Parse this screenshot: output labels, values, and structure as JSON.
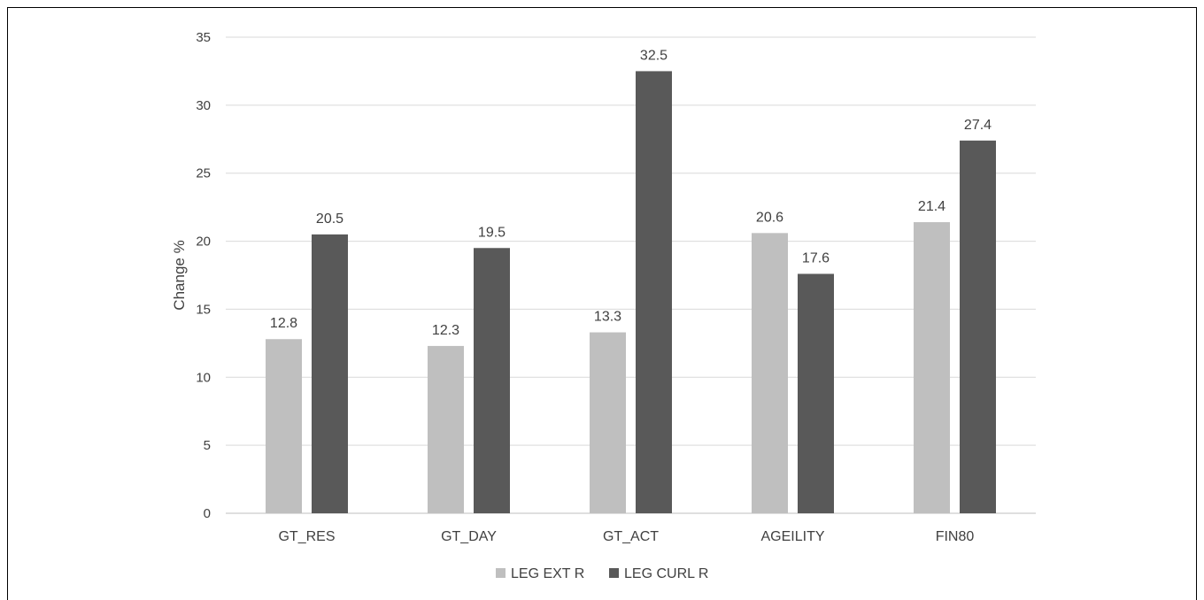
{
  "chart_data": {
    "type": "bar",
    "title": "",
    "xlabel": "",
    "ylabel": "Change %",
    "ylim": [
      0,
      35
    ],
    "yticks": [
      0,
      5,
      10,
      15,
      20,
      25,
      30,
      35
    ],
    "grid": true,
    "legend_position": "bottom",
    "categories": [
      "GT_RES",
      "GT_DAY",
      "GT_ACT",
      "AGEILITY",
      "FIN80"
    ],
    "series": [
      {
        "name": "LEG EXT R",
        "color": "#bfbfbf",
        "values": [
          12.8,
          12.3,
          13.3,
          20.6,
          21.4
        ]
      },
      {
        "name": "LEG CURL R",
        "color": "#595959",
        "values": [
          20.5,
          19.5,
          32.5,
          17.6,
          27.4
        ]
      }
    ]
  }
}
